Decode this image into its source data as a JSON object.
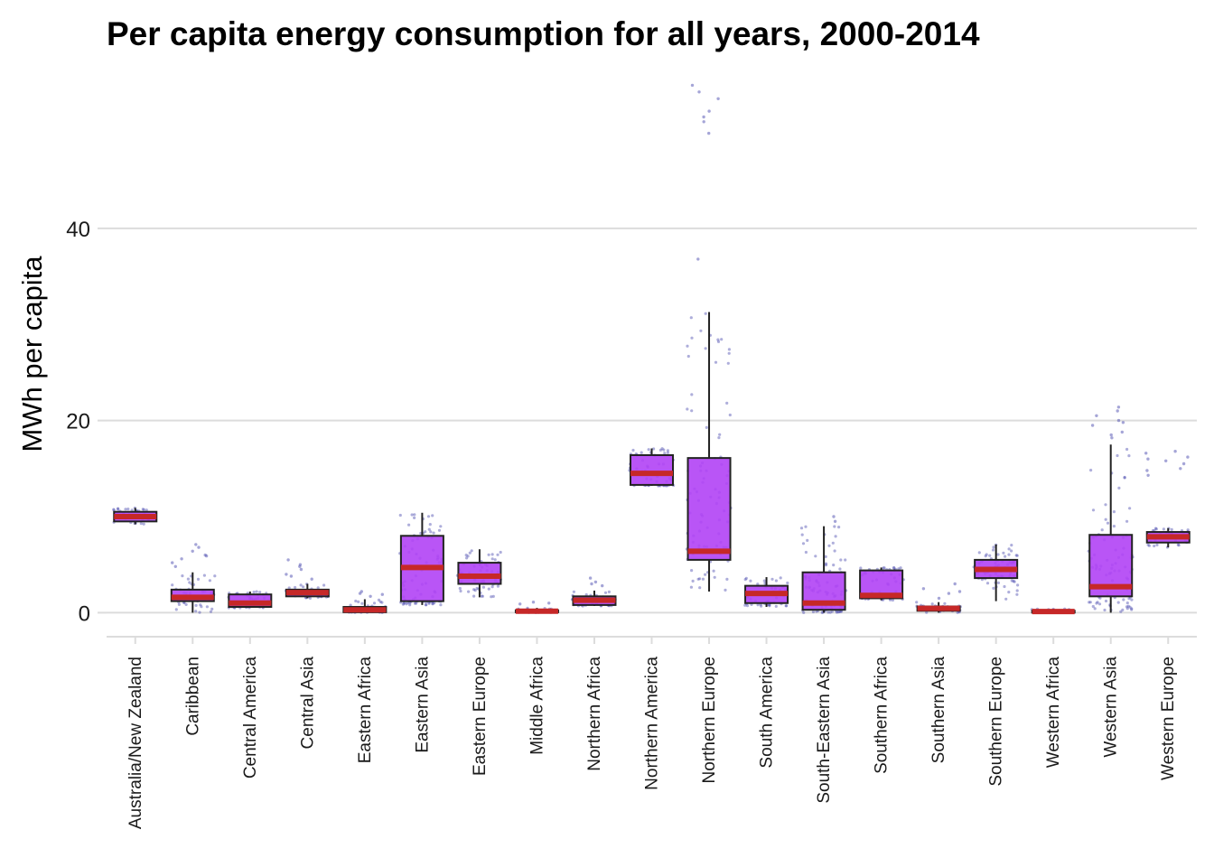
{
  "colors": {
    "box_fill": "#b142f5",
    "box_stroke": "#222222",
    "median": "#c62828",
    "points": "#4b4bb0",
    "grid": "#dcdcdc",
    "background": "#ffffff"
  },
  "chart_data": {
    "type": "boxplot",
    "title": "Per capita energy consumption for all years, 2000-2014",
    "xlabel": "",
    "ylabel": "MWh per capita",
    "ylim": [
      -2.5,
      55.5
    ],
    "yticks": [
      0,
      20,
      40
    ],
    "grid": "horizontal",
    "jitter_points": true,
    "categories": [
      "Australia/New Zealand",
      "Caribbean",
      "Central America",
      "Central Asia",
      "Eastern Africa",
      "Eastern Asia",
      "Eastern Europe",
      "Middle Africa",
      "Northern Africa",
      "Northern America",
      "Northern Europe",
      "South America",
      "South-Eastern Asia",
      "Southern Africa",
      "Southern Asia",
      "Southern Europe",
      "Western Africa",
      "Western Asia",
      "Western Europe"
    ],
    "boxes": [
      {
        "category": "Australia/New Zealand",
        "whisker_low": 9.2,
        "q1": 9.5,
        "median": 10.0,
        "q3": 10.5,
        "whisker_high": 10.9,
        "outliers": []
      },
      {
        "category": "Caribbean",
        "whisker_low": 0.0,
        "q1": 1.2,
        "median": 1.6,
        "q3": 2.4,
        "whisker_high": 4.2,
        "outliers": [
          5.2,
          5.6,
          6.0,
          6.4,
          6.8,
          7.1,
          4.8,
          5.9
        ]
      },
      {
        "category": "Central America",
        "whisker_low": 0.5,
        "q1": 0.6,
        "median": 1.0,
        "q3": 1.9,
        "whisker_high": 2.2,
        "outliers": []
      },
      {
        "category": "Central Asia",
        "whisker_low": 1.5,
        "q1": 1.7,
        "median": 2.1,
        "q3": 2.4,
        "whisker_high": 3.0,
        "outliers": [
          3.5,
          4.0,
          4.5,
          5.0,
          5.5,
          3.8,
          4.8
        ]
      },
      {
        "category": "Eastern Africa",
        "whisker_low": 0.0,
        "q1": 0.05,
        "median": 0.3,
        "q3": 0.6,
        "whisker_high": 1.4,
        "outliers": [
          1.7,
          2.0,
          2.2,
          1.9
        ]
      },
      {
        "category": "Eastern Asia",
        "whisker_low": 0.8,
        "q1": 1.2,
        "median": 4.7,
        "q3": 8.0,
        "whisker_high": 10.4,
        "outliers": []
      },
      {
        "category": "Eastern Europe",
        "whisker_low": 1.6,
        "q1": 3.0,
        "median": 3.8,
        "q3": 5.2,
        "whisker_high": 6.6,
        "outliers": []
      },
      {
        "category": "Middle Africa",
        "whisker_low": 0.0,
        "q1": 0.05,
        "median": 0.15,
        "q3": 0.25,
        "whisker_high": 0.5,
        "outliers": [
          0.9,
          1.1,
          1.0
        ]
      },
      {
        "category": "Northern Africa",
        "whisker_low": 0.7,
        "q1": 0.8,
        "median": 1.3,
        "q3": 1.7,
        "whisker_high": 2.3,
        "outliers": [
          2.8,
          3.2,
          3.6,
          3.0
        ]
      },
      {
        "category": "Northern America",
        "whisker_low": 13.2,
        "q1": 13.3,
        "median": 14.5,
        "q3": 16.4,
        "whisker_high": 17.1,
        "outliers": []
      },
      {
        "category": "Northern Europe",
        "whisker_low": 2.2,
        "q1": 5.5,
        "median": 6.4,
        "q3": 16.1,
        "whisker_high": 31.3,
        "outliers": [
          36.8,
          49.9,
          51.1,
          51.6,
          52.2,
          53.5,
          54.2,
          54.9
        ]
      },
      {
        "category": "South America",
        "whisker_low": 0.6,
        "q1": 1.0,
        "median": 2.0,
        "q3": 2.8,
        "whisker_high": 3.7,
        "outliers": []
      },
      {
        "category": "South-Eastern Asia",
        "whisker_low": 0.0,
        "q1": 0.3,
        "median": 1.0,
        "q3": 4.2,
        "whisker_high": 9.0,
        "outliers": [
          9.5,
          10.0
        ]
      },
      {
        "category": "Southern Africa",
        "whisker_low": 1.3,
        "q1": 1.5,
        "median": 1.8,
        "q3": 4.4,
        "whisker_high": 4.7,
        "outliers": []
      },
      {
        "category": "Southern Asia",
        "whisker_low": 0.0,
        "q1": 0.2,
        "median": 0.45,
        "q3": 0.65,
        "whisker_high": 1.1,
        "outliers": [
          1.5,
          2.0,
          2.5,
          3.0,
          2.2
        ]
      },
      {
        "category": "Southern Europe",
        "whisker_low": 1.2,
        "q1": 3.6,
        "median": 4.5,
        "q3": 5.5,
        "whisker_high": 7.1,
        "outliers": []
      },
      {
        "category": "Western Africa",
        "whisker_low": 0.0,
        "q1": 0.02,
        "median": 0.12,
        "q3": 0.2,
        "whisker_high": 0.4,
        "outliers": []
      },
      {
        "category": "Western Asia",
        "whisker_low": 0.0,
        "q1": 1.7,
        "median": 2.7,
        "q3": 8.1,
        "whisker_high": 17.5,
        "outliers": [
          18.2,
          18.8,
          19.5,
          20.0,
          20.5,
          21.0,
          21.4,
          18.5,
          19.8
        ]
      },
      {
        "category": "Western Europe",
        "whisker_low": 6.8,
        "q1": 7.3,
        "median": 7.9,
        "q3": 8.4,
        "whisker_high": 8.8,
        "outliers": [
          14.3,
          15.0,
          15.8,
          16.2,
          16.6,
          16.8,
          14.8,
          15.5,
          16.0
        ]
      }
    ]
  }
}
